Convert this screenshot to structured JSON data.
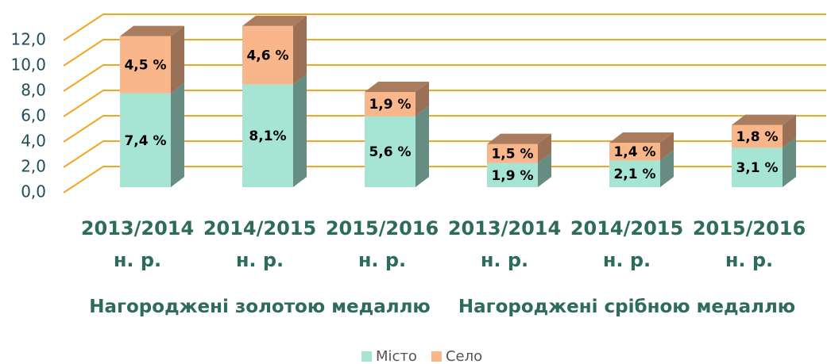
{
  "chart_data": {
    "type": "bar3d_stacked",
    "categories": [
      "2013/2014 н. р.",
      "2014/2015 н. р.",
      "2015/2016 н. р.",
      "2013/2014 н. р.",
      "2014/2015 н. р.",
      "2015/2016 н. р."
    ],
    "groups": [
      "Нагороджені золотою медаллю",
      "Нагороджені срібною медаллю"
    ],
    "series": [
      {
        "name": "Місто",
        "color": "#a6e4d4",
        "values": [
          7.4,
          8.1,
          5.6,
          1.9,
          2.1,
          3.1
        ],
        "value_labels": [
          "7,4 %",
          "8,1%",
          "5,6 %",
          "1,9 %",
          "2,1 %",
          "3,1 %"
        ]
      },
      {
        "name": "Село",
        "color": "#f9b68a",
        "values": [
          4.5,
          4.6,
          1.9,
          1.5,
          1.4,
          1.8
        ],
        "value_labels": [
          "4,5 %",
          "4,6 %",
          "1,9 %",
          "1,5 %",
          "1,4 %",
          "1,8 %"
        ]
      }
    ],
    "ylim": [
      0,
      12
    ],
    "yticks": [
      {
        "value": 0,
        "label": "0,0"
      },
      {
        "value": 2,
        "label": "2,0"
      },
      {
        "value": 4,
        "label": "4,0"
      },
      {
        "value": 6,
        "label": "6,0"
      },
      {
        "value": 8,
        "label": "8,0"
      },
      {
        "value": 10,
        "label": "10,0"
      },
      {
        "value": 12,
        "label": "12,0"
      }
    ],
    "grid": true,
    "grid_color": "#f2a626",
    "legend": "bottom"
  }
}
